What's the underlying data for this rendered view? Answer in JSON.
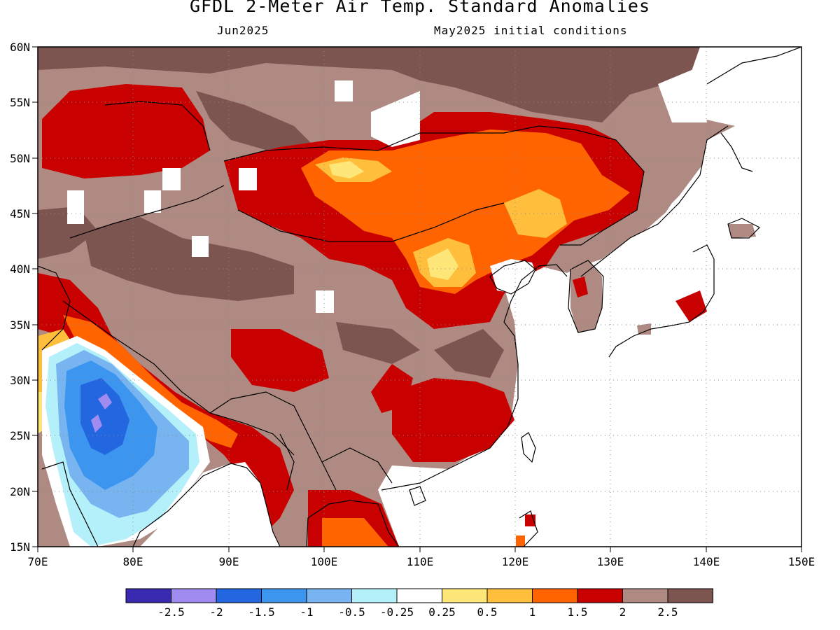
{
  "header": {
    "title": "GFDL 2-Meter Air Temp. Standard Anomalies",
    "valid_month": "Jun2025",
    "init_conditions": "May2025 initial conditions"
  },
  "map": {
    "lat_labels": [
      "15N",
      "20N",
      "25N",
      "30N",
      "35N",
      "40N",
      "45N",
      "50N",
      "55N",
      "60N"
    ],
    "lon_labels": [
      "70E",
      "80E",
      "90E",
      "100E",
      "110E",
      "120E",
      "130E",
      "140E",
      "150E"
    ],
    "lat_range": [
      15,
      60
    ],
    "lon_range": [
      70,
      150
    ]
  },
  "colorbar": {
    "labels": [
      "-2.5",
      "-2",
      "-1.5",
      "-1",
      "-0.5",
      "-0.25",
      "0.25",
      "0.5",
      "1",
      "1.5",
      "2",
      "2.5"
    ],
    "colors": [
      "#3a2ab0",
      "#a08cf0",
      "#2266e0",
      "#3c96f0",
      "#78b4f0",
      "#b4f0fa",
      "#ffffff",
      "#ffe678",
      "#ffbe3c",
      "#ff6400",
      "#c80000",
      "#af8a82",
      "#7d5550"
    ]
  }
}
